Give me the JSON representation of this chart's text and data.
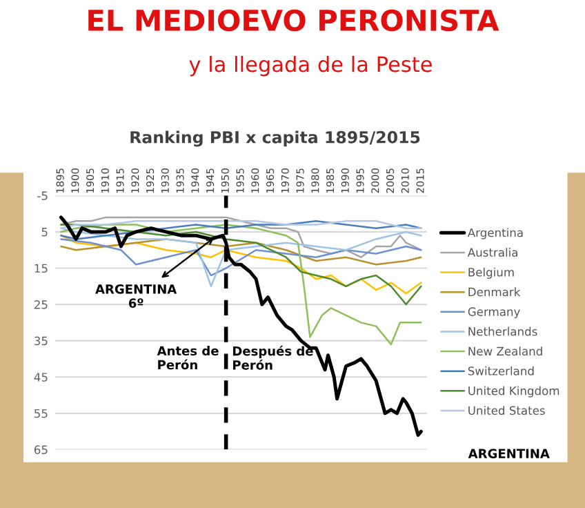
{
  "chart_data": {
    "type": "line",
    "title": "EL MEDIOEVO PERONISTA",
    "subtitle": "y la llegada de la Peste",
    "annotations": [
      "Ranking PBI x capita 1895/2015",
      {
        "text": "ARGENTINA\n6º",
        "x": 1947,
        "y": 6
      },
      "Antes de\nPerón",
      "Después de\nPerón",
      "ARGENTINA"
    ],
    "xlim": [
      1893,
      2017
    ],
    "xticks": [
      1895,
      1900,
      1905,
      1910,
      1915,
      1920,
      1925,
      1930,
      1935,
      1940,
      1945,
      1950,
      1955,
      1960,
      1965,
      1970,
      1975,
      1980,
      1985,
      1990,
      1995,
      2000,
      2005,
      2010,
      2015
    ],
    "ylim": [
      65,
      -5
    ],
    "yticks": [
      -5,
      5,
      15,
      25,
      35,
      45,
      55,
      65
    ],
    "grid": "y",
    "legend": "right",
    "ref_lines": [
      {
        "axis": "x",
        "value": 1950,
        "color": "#000000",
        "line_style": "dashed"
      }
    ],
    "series": [
      {
        "name": "Argentina",
        "color": "#000000",
        "x": [
          1895,
          1897,
          1900,
          1902,
          1905,
          1910,
          1913,
          1915,
          1917,
          1920,
          1925,
          1930,
          1935,
          1940,
          1945,
          1949,
          1950,
          1951,
          1953,
          1955,
          1958,
          1960,
          1962,
          1964,
          1967,
          1970,
          1972,
          1975,
          1978,
          1980,
          1983,
          1984,
          1986,
          1987,
          1990,
          1993,
          1995,
          1997,
          2000,
          2003,
          2005,
          2007,
          2009,
          2010,
          2012,
          2014,
          2015
        ],
        "values": [
          1,
          3,
          7,
          4,
          5,
          5,
          4,
          9,
          6,
          5,
          4,
          5,
          6,
          6,
          7,
          6,
          8,
          12,
          14,
          14,
          16,
          18,
          25,
          23,
          28,
          31,
          32,
          35,
          37,
          37,
          43,
          39,
          45,
          51,
          42,
          41,
          40,
          42,
          46,
          55,
          54,
          55,
          51,
          52,
          55,
          61,
          60
        ]
      },
      {
        "name": "Australia",
        "color": "#a5a5a5",
        "x": [
          1895,
          1900,
          1905,
          1910,
          1920,
          1930,
          1940,
          1950,
          1955,
          1960,
          1965,
          1970,
          1974,
          1976,
          1980,
          1985,
          1990,
          1995,
          2000,
          2005,
          2008,
          2010,
          2015
        ],
        "values": [
          3,
          2,
          2,
          1,
          1,
          1,
          1,
          1,
          2,
          3,
          4,
          4,
          5,
          9,
          10,
          11,
          10,
          12,
          9,
          9,
          6,
          8,
          10
        ]
      },
      {
        "name": "Belgium",
        "color": "#ffc000",
        "x": [
          1895,
          1900,
          1910,
          1920,
          1930,
          1940,
          1945,
          1950,
          1960,
          1970,
          1975,
          1980,
          1985,
          1990,
          1995,
          2000,
          2005,
          2010,
          2015
        ],
        "values": [
          6,
          8,
          9,
          8,
          10,
          11,
          12,
          10,
          12,
          13,
          15,
          18,
          17,
          20,
          18,
          21,
          19,
          22,
          19
        ]
      },
      {
        "name": "Denmark",
        "color": "#b8902e",
        "x": [
          1895,
          1900,
          1910,
          1920,
          1930,
          1940,
          1950,
          1960,
          1970,
          1980,
          1990,
          2000,
          2010,
          2015
        ],
        "values": [
          9,
          10,
          9,
          8,
          7,
          8,
          9,
          8,
          10,
          13,
          12,
          14,
          13,
          12
        ]
      },
      {
        "name": "Germany",
        "color": "#6f8fd0",
        "x": [
          1895,
          1905,
          1915,
          1920,
          1930,
          1940,
          1945,
          1950,
          1960,
          1970,
          1980,
          1990,
          2000,
          2010,
          2015
        ],
        "values": [
          7,
          8,
          10,
          14,
          12,
          10,
          17,
          15,
          10,
          11,
          12,
          10,
          11,
          9,
          10
        ]
      },
      {
        "name": "Netherlands",
        "color": "#9dc3e6",
        "x": [
          1895,
          1900,
          1910,
          1920,
          1930,
          1940,
          1945,
          1950,
          1960,
          1970,
          1980,
          1990,
          2000,
          2010,
          2015
        ],
        "values": [
          4,
          5,
          6,
          7,
          7,
          8,
          20,
          10,
          9,
          8,
          9,
          10,
          7,
          5,
          6
        ]
      },
      {
        "name": "New Zealand",
        "color": "#8fbf5a",
        "x": [
          1895,
          1900,
          1910,
          1920,
          1930,
          1940,
          1950,
          1960,
          1970,
          1974,
          1976,
          1978,
          1982,
          1985,
          1990,
          1995,
          2000,
          2005,
          2008,
          2015
        ],
        "values": [
          5,
          4,
          3,
          3,
          5,
          4,
          3,
          4,
          6,
          8,
          20,
          34,
          28,
          26,
          28,
          30,
          31,
          36,
          30,
          30
        ]
      },
      {
        "name": "Switzerland",
        "color": "#4a7ebb",
        "x": [
          1895,
          1900,
          1910,
          1920,
          1930,
          1940,
          1950,
          1960,
          1970,
          1980,
          1990,
          2000,
          2010,
          2015
        ],
        "values": [
          6,
          7,
          6,
          5,
          4,
          3,
          4,
          3,
          3,
          2,
          3,
          4,
          3,
          4
        ]
      },
      {
        "name": "United Kingdom",
        "color": "#4e8a2e",
        "x": [
          1895,
          1900,
          1910,
          1920,
          1930,
          1940,
          1950,
          1960,
          1965,
          1970,
          1975,
          1980,
          1985,
          1990,
          1995,
          2000,
          2005,
          2010,
          2015
        ],
        "values": [
          3,
          3,
          4,
          5,
          6,
          5,
          7,
          8,
          10,
          12,
          16,
          17,
          18,
          20,
          18,
          17,
          20,
          25,
          20
        ]
      },
      {
        "name": "United States",
        "color": "#b4c7e7",
        "x": [
          1895,
          1900,
          1910,
          1920,
          1930,
          1940,
          1950,
          1960,
          1970,
          1980,
          1990,
          2000,
          2010,
          2015
        ],
        "values": [
          4,
          3,
          3,
          2,
          2,
          2,
          2,
          2,
          3,
          3,
          2,
          2,
          4,
          4
        ]
      }
    ]
  }
}
